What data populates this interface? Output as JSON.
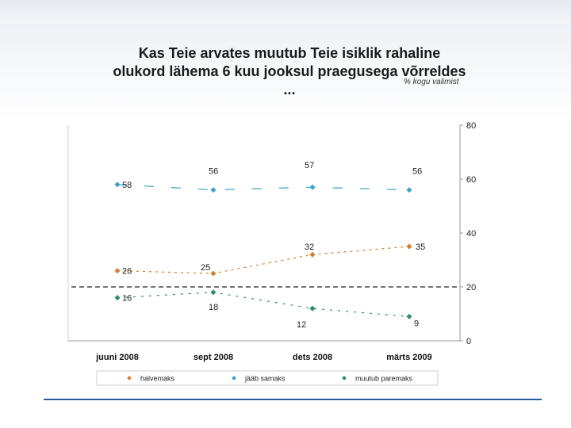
{
  "colors": {
    "halvemaks": "#d97c2b",
    "jaab_samaks": "#3aa3c7",
    "muutub_paremaks": "#2e8b6e",
    "axis": "#999999",
    "rule": "#2a5aa0"
  },
  "chart_data": {
    "type": "line",
    "title": "Kas Teie arvates muutub Teie isiklik rahaline olukord lähema 6 kuu jooksul praegusega võrreldes ...",
    "subtitle": "% kogu valimist",
    "categories": [
      "juuni 2008",
      "sept 2008",
      "dets 2008",
      "märts 2009"
    ],
    "ylim": [
      0,
      80
    ],
    "yticks": [
      "80",
      "60",
      "40",
      "20",
      "0"
    ],
    "reference_line": 20,
    "legend_position": "bottom",
    "series": [
      {
        "name": "halvemaks",
        "values": [
          26,
          25,
          32,
          35
        ],
        "labels": [
          "26",
          "25",
          "32",
          "35"
        ],
        "color_key": "halvemaks"
      },
      {
        "name": "jääb samaks",
        "values": [
          58,
          56,
          57,
          56
        ],
        "labels": [
          "58",
          "56",
          "57",
          "56"
        ],
        "color_key": "jaab_samaks"
      },
      {
        "name": "muutub paremaks",
        "values": [
          16,
          18,
          12,
          9
        ],
        "labels": [
          "16",
          "18",
          "12",
          "9"
        ],
        "color_key": "muutub_paremaks"
      }
    ]
  }
}
